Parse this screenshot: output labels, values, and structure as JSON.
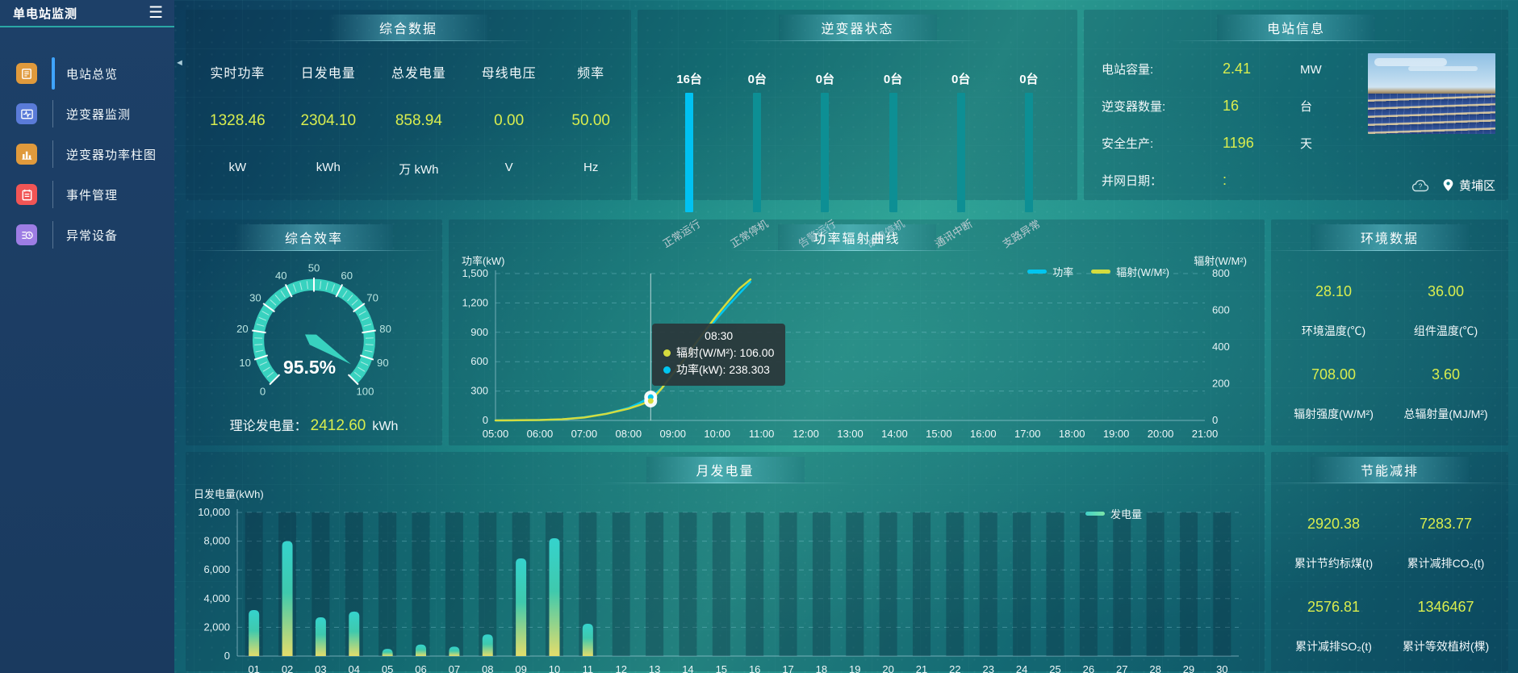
{
  "sidebar": {
    "title": "单电站监测",
    "items": [
      {
        "label": "电站总览",
        "icon": "overview-news-icon",
        "color": "#e09a3c",
        "active": true
      },
      {
        "label": "逆变器监测",
        "icon": "inverter-wave-icon",
        "color": "#5a7bd8",
        "active": false
      },
      {
        "label": "逆变器功率柱图",
        "icon": "power-bars-icon",
        "color": "#e09a3c",
        "active": false
      },
      {
        "label": "事件管理",
        "icon": "event-notebook-icon",
        "color": "#f15555",
        "active": false
      },
      {
        "label": "异常设备",
        "icon": "abnormal-device-icon",
        "color": "#9d7de4",
        "active": false
      }
    ]
  },
  "overview": {
    "title": "综合数据",
    "metrics": [
      {
        "label": "实时功率",
        "value": "1328.46",
        "unit": "kW"
      },
      {
        "label": "日发电量",
        "value": "2304.10",
        "unit": "kWh"
      },
      {
        "label": "总发电量",
        "value": "858.94",
        "unit": "万 kWh"
      },
      {
        "label": "母线电压",
        "value": "0.00",
        "unit": "V"
      },
      {
        "label": "频率",
        "value": "50.00",
        "unit": "Hz"
      }
    ]
  },
  "inverter_status": {
    "title": "逆变器状态",
    "unit_suffix": "台",
    "items": [
      {
        "label": "正常运行",
        "count": 16,
        "color": "#00c2f2"
      },
      {
        "label": "正常停机",
        "count": 0,
        "color": "#0d8f94"
      },
      {
        "label": "告警运行",
        "count": 0,
        "color": "#0d8f94"
      },
      {
        "label": "故障停机",
        "count": 0,
        "color": "#0d8f94"
      },
      {
        "label": "通讯中断",
        "count": 0,
        "color": "#0d8f94"
      },
      {
        "label": "支路异常",
        "count": 0,
        "color": "#0d8f94"
      }
    ]
  },
  "station_info": {
    "title": "电站信息",
    "rows": [
      {
        "label": "电站容量:",
        "value": "2.41",
        "unit": "MW"
      },
      {
        "label": "逆变器数量:",
        "value": "16",
        "unit": "台"
      },
      {
        "label": "安全生产:",
        "value": "1196",
        "unit": "天"
      },
      {
        "label": "并网日期：",
        "value": ":",
        "unit": ""
      }
    ],
    "location": "黄埔区"
  },
  "efficiency": {
    "title": "综合效率",
    "value": 95.5,
    "value_label": "95.5%",
    "min": 0,
    "max": 100,
    "tick_step": 10,
    "arc_color": "#38d2bf",
    "theory_label": "理论发电量：",
    "theory_value": "2412.60",
    "theory_unit": "kWh"
  },
  "env": {
    "title": "环境数据",
    "items": [
      {
        "value": "28.10",
        "label": "环境温度(℃)"
      },
      {
        "value": "36.00",
        "label": "组件温度(℃)"
      },
      {
        "value": "708.00",
        "label": "辐射强度(W/M²)"
      },
      {
        "value": "3.60",
        "label": "总辐射量(MJ/M²)"
      }
    ]
  },
  "saving": {
    "title": "节能减排",
    "items": [
      {
        "value": "2920.38",
        "label": "累计节约标煤(t)"
      },
      {
        "value": "7283.77",
        "label": "累计减排CO₂(t)"
      },
      {
        "value": "2576.81",
        "label": "累计减排SO₂(t)"
      },
      {
        "value": "1346467",
        "label": "累计等效植树(棵)"
      }
    ]
  },
  "chart_data": [
    {
      "type": "line",
      "title": "功率辐射曲线",
      "ylabel_left": "功率(kW)",
      "ylabel_right": "辐射(W/M²)",
      "ylim_left": [
        0,
        1500
      ],
      "ylim_right": [
        0,
        800
      ],
      "yticks_left": {
        "values": [
          0,
          300,
          600,
          900,
          1200,
          1500
        ],
        "labels": [
          "0",
          "300",
          "600",
          "900",
          "1,200",
          "1,500"
        ]
      },
      "yticks_right": {
        "values": [
          0,
          200,
          400,
          600,
          800
        ],
        "labels": [
          "0",
          "200",
          "400",
          "600",
          "800"
        ]
      },
      "xticks": [
        "05:00",
        "06:00",
        "07:00",
        "08:00",
        "09:00",
        "10:00",
        "11:00",
        "12:00",
        "13:00",
        "14:00",
        "15:00",
        "16:00",
        "17:00",
        "18:00",
        "19:00",
        "20:00",
        "21:00"
      ],
      "x_minute_range": [
        300,
        1260
      ],
      "grid": "dashed-horizontal",
      "legend_position": "top-right",
      "legend": [
        {
          "name": "功率",
          "color": "#00c6f0"
        },
        {
          "name": "辐射(W/M²)",
          "color": "#d4dc3e"
        }
      ],
      "series": [
        {
          "name": "功率",
          "axis": "left",
          "color": "#00c6f0",
          "points": [
            [
              300,
              0
            ],
            [
              330,
              1
            ],
            [
              360,
              4
            ],
            [
              390,
              10
            ],
            [
              420,
              32
            ],
            [
              450,
              68
            ],
            [
              480,
              128
            ],
            [
              495,
              178
            ],
            [
              510,
              238.3
            ],
            [
              525,
              330
            ],
            [
              540,
              470
            ],
            [
              555,
              610
            ],
            [
              570,
              760
            ],
            [
              585,
              905
            ],
            [
              600,
              1045
            ],
            [
              615,
              1175
            ],
            [
              630,
              1295
            ],
            [
              645,
              1415
            ]
          ]
        },
        {
          "name": "辐射(W/M²)",
          "axis": "right",
          "color": "#d4dc3e",
          "points": [
            [
              300,
              0
            ],
            [
              330,
              1
            ],
            [
              360,
              2
            ],
            [
              390,
              6
            ],
            [
              420,
              16
            ],
            [
              450,
              36
            ],
            [
              480,
              64
            ],
            [
              495,
              84
            ],
            [
              510,
              106
            ],
            [
              525,
              175
            ],
            [
              540,
              255
            ],
            [
              555,
              330
            ],
            [
              570,
              415
            ],
            [
              585,
              495
            ],
            [
              600,
              575
            ],
            [
              615,
              648
            ],
            [
              630,
              718
            ],
            [
              645,
              768
            ]
          ]
        }
      ],
      "tooltip": {
        "time": "08:30",
        "marker_minute": 510,
        "rows": [
          {
            "name": "辐射(W/M²)",
            "value": "106.00",
            "color": "#d4dc3e"
          },
          {
            "name": "功率(kW)",
            "value": "238.303",
            "color": "#00c6f0"
          }
        ]
      }
    },
    {
      "type": "bar",
      "title": "月发电量",
      "ylabel": "日发电量(kWh)",
      "ylim": [
        0,
        10000
      ],
      "yticks": {
        "values": [
          0,
          2000,
          4000,
          6000,
          8000,
          10000
        ],
        "labels": [
          "0",
          "2,000",
          "4,000",
          "6,000",
          "8,000",
          "10,000"
        ]
      },
      "categories": [
        "01",
        "02",
        "03",
        "04",
        "05",
        "06",
        "07",
        "08",
        "09",
        "10",
        "11",
        "12",
        "13",
        "14",
        "15",
        "16",
        "17",
        "18",
        "19",
        "20",
        "21",
        "22",
        "23",
        "24",
        "25",
        "26",
        "27",
        "28",
        "29",
        "30"
      ],
      "values": [
        3200,
        8000,
        2700,
        3100,
        500,
        800,
        650,
        1500,
        6800,
        8200,
        2250,
        0,
        0,
        0,
        0,
        0,
        0,
        0,
        0,
        0,
        0,
        0,
        0,
        0,
        0,
        0,
        0,
        0,
        0,
        0
      ],
      "grid": "dashed-horizontal",
      "bar_gradient": [
        "#35d3cd",
        "#3fc9ad",
        "#e3dd6b"
      ],
      "legend_position": "top-right",
      "legend": [
        {
          "name": "发电量",
          "color": "#7ce6a8"
        }
      ]
    }
  ]
}
